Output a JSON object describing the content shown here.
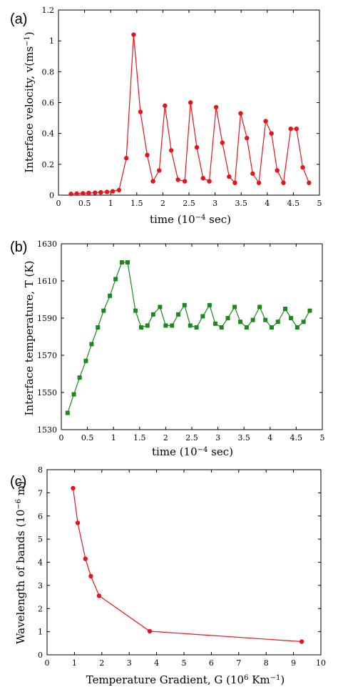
{
  "chart_data": [
    {
      "panel_label": "(a)",
      "type": "line",
      "xlabel": "time (10",
      "xlabel_sup": "−4",
      "xlabel_tail": " sec)",
      "ylabel": "Interface velocity, v(ms",
      "ylabel_sup": "−1",
      "ylabel_tail": ")",
      "xlim": [
        0,
        5
      ],
      "ylim": [
        0,
        1.2
      ],
      "xticks": [
        "0",
        "0.5",
        "1",
        "1.5",
        "2",
        "2.5",
        "3",
        "3.5",
        "4",
        "4.5",
        "5"
      ],
      "yticks": [
        "0",
        "0.2",
        "0.4",
        "0.6",
        "0.8",
        "1",
        "1.2"
      ],
      "grid": false,
      "marker": "circle",
      "color": "#e8141b",
      "series": [
        {
          "x": [
            0.24,
            0.35,
            0.47,
            0.58,
            0.7,
            0.81,
            0.93,
            1.04,
            1.16,
            1.3,
            1.44,
            1.57,
            1.7,
            1.81,
            1.93,
            2.04,
            2.16,
            2.29,
            2.42,
            2.53,
            2.65,
            2.77,
            2.89,
            3.02,
            3.14,
            3.27,
            3.38,
            3.49,
            3.61,
            3.72,
            3.84,
            3.97,
            4.08,
            4.19,
            4.31,
            4.45,
            4.56,
            4.68,
            4.8
          ],
          "y": [
            0.008,
            0.01,
            0.012,
            0.014,
            0.016,
            0.018,
            0.021,
            0.025,
            0.033,
            0.24,
            1.04,
            0.54,
            0.26,
            0.09,
            0.16,
            0.58,
            0.29,
            0.1,
            0.09,
            0.6,
            0.31,
            0.11,
            0.09,
            0.57,
            0.34,
            0.12,
            0.08,
            0.53,
            0.37,
            0.14,
            0.08,
            0.48,
            0.4,
            0.16,
            0.08,
            0.43,
            0.43,
            0.18,
            0.08
          ]
        }
      ]
    },
    {
      "panel_label": "(b)",
      "type": "line",
      "xlabel": "time (10",
      "xlabel_sup": "−4",
      "xlabel_tail": " sec)",
      "ylabel": "Interface temperature, T (K)",
      "ylabel_sup": "",
      "ylabel_tail": "",
      "xlim": [
        0,
        5
      ],
      "ylim": [
        1530,
        1630
      ],
      "xticks": [
        "0",
        "0.5",
        "1",
        "1.5",
        "2",
        "2.5",
        "3",
        "3.5",
        "4",
        "4.5",
        "5"
      ],
      "yticks": [
        "1530",
        "1550",
        "1570",
        "1590",
        "1610",
        "1630"
      ],
      "grid": false,
      "marker": "square",
      "color": "#1a8a1a",
      "series": [
        {
          "x": [
            0.12,
            0.24,
            0.35,
            0.47,
            0.58,
            0.7,
            0.81,
            0.93,
            1.04,
            1.16,
            1.27,
            1.42,
            1.53,
            1.65,
            1.76,
            1.89,
            2.0,
            2.12,
            2.24,
            2.36,
            2.47,
            2.59,
            2.71,
            2.84,
            2.95,
            3.07,
            3.19,
            3.32,
            3.43,
            3.55,
            3.67,
            3.8,
            3.91,
            4.03,
            4.15,
            4.29,
            4.4,
            4.52,
            4.64,
            4.76
          ],
          "y": [
            1539,
            1549,
            1558,
            1567,
            1576,
            1585,
            1594,
            1602,
            1611,
            1620,
            1620,
            1594,
            1585,
            1586,
            1592,
            1596,
            1586,
            1586,
            1592,
            1597,
            1586,
            1585,
            1591,
            1597,
            1587,
            1585,
            1590,
            1596,
            1588,
            1585,
            1589,
            1596,
            1589,
            1585,
            1588,
            1595,
            1590,
            1585,
            1588,
            1594
          ]
        }
      ]
    },
    {
      "panel_label": "(c)",
      "type": "line",
      "xlabel": "Temperature Gradient, G (10",
      "xlabel_sup": "6",
      "xlabel_tail": " Km",
      "xlabel_sup2": "−1",
      "xlabel_tail2": ")",
      "ylabel": "Wavelength of bands (10",
      "ylabel_sup": "−6",
      "ylabel_tail": " m)",
      "xlim": [
        0,
        10
      ],
      "ylim": [
        0,
        8
      ],
      "xticks": [
        "0",
        "1",
        "2",
        "3",
        "4",
        "5",
        "6",
        "7",
        "8",
        "9",
        "10"
      ],
      "yticks": [
        "0",
        "1",
        "2",
        "3",
        "4",
        "5",
        "6",
        "7",
        "8"
      ],
      "grid": false,
      "marker": "circle",
      "color": "#e8141b",
      "series": [
        {
          "x": [
            0.95,
            1.12,
            1.4,
            1.6,
            1.9,
            3.75,
            9.3
          ],
          "y": [
            7.2,
            5.7,
            4.15,
            3.4,
            2.55,
            1.02,
            0.57
          ]
        }
      ]
    }
  ]
}
